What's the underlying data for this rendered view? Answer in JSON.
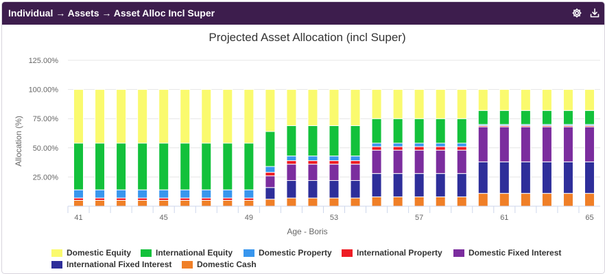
{
  "header": {
    "title": "Individual → Assets → Asset Alloc Incl Super",
    "settings_icon": "gear-icon",
    "export_icon": "download-icon",
    "background": "#3d1d4d"
  },
  "chart_data": {
    "type": "bar",
    "stacked": true,
    "title": "Projected Asset Allocation (incl Super)",
    "xlabel": "Age - Boris",
    "ylabel": "Allocation (%)",
    "ylim": [
      0,
      125
    ],
    "yticks": [
      "25.00%",
      "50.00%",
      "75.00%",
      "100.00%",
      "125.00%"
    ],
    "xticks": [
      "41",
      "45",
      "49",
      "53",
      "57",
      "61",
      "65"
    ],
    "categories": [
      41,
      42,
      43,
      44,
      45,
      46,
      47,
      48,
      49,
      50,
      51,
      52,
      53,
      54,
      55,
      56,
      57,
      58,
      59,
      60,
      61,
      62,
      63,
      64,
      65
    ],
    "grid": "horizontal",
    "legend_position": "bottom",
    "series": [
      {
        "name": "Domestic Cash",
        "color": "#f07f27",
        "values": [
          5,
          5,
          5,
          5,
          5,
          5,
          5,
          5,
          5,
          6,
          7,
          7,
          7,
          7,
          8,
          8,
          8,
          8,
          8,
          11,
          11,
          11,
          11,
          11,
          11
        ]
      },
      {
        "name": "International Fixed Interest",
        "color": "#2e2e9a",
        "values": [
          0,
          0,
          0,
          0,
          0,
          0,
          0,
          0,
          0,
          10,
          15,
          15,
          15,
          15,
          20,
          20,
          20,
          20,
          20,
          27,
          27,
          27,
          27,
          27,
          27
        ]
      },
      {
        "name": "Domestic Fixed Interest",
        "color": "#7b2d9e",
        "values": [
          0,
          0,
          0,
          0,
          0,
          0,
          0,
          0,
          0,
          10,
          14,
          14,
          14,
          14,
          20,
          20,
          20,
          20,
          20,
          30,
          30,
          30,
          30,
          30,
          30
        ]
      },
      {
        "name": "International Property",
        "color": "#ee1c24",
        "values": [
          2,
          2,
          2,
          2,
          2,
          2,
          2,
          2,
          2,
          3,
          3,
          3,
          3,
          3,
          3,
          3,
          3,
          3,
          3,
          1,
          1,
          1,
          1,
          1,
          1
        ]
      },
      {
        "name": "Domestic Property",
        "color": "#3896ee",
        "values": [
          7,
          7,
          7,
          7,
          7,
          7,
          7,
          7,
          7,
          5,
          4,
          4,
          4,
          4,
          3,
          3,
          3,
          3,
          3,
          1,
          1,
          1,
          1,
          1,
          1
        ]
      },
      {
        "name": "International Equity",
        "color": "#13c13b",
        "values": [
          40,
          40,
          40,
          40,
          40,
          40,
          40,
          40,
          40,
          30,
          26,
          26,
          26,
          26,
          21,
          21,
          21,
          21,
          21,
          12,
          12,
          12,
          12,
          12,
          12
        ]
      },
      {
        "name": "Domestic Equity",
        "color": "#fafa6e",
        "values": [
          46,
          46,
          46,
          46,
          46,
          46,
          46,
          46,
          46,
          36,
          31,
          31,
          31,
          31,
          25,
          25,
          25,
          25,
          25,
          18,
          18,
          18,
          18,
          18,
          18
        ]
      }
    ],
    "legend_order": [
      "Domestic Equity",
      "International Equity",
      "Domestic Property",
      "International Property",
      "Domestic Fixed Interest",
      "International Fixed Interest",
      "Domestic Cash"
    ]
  }
}
